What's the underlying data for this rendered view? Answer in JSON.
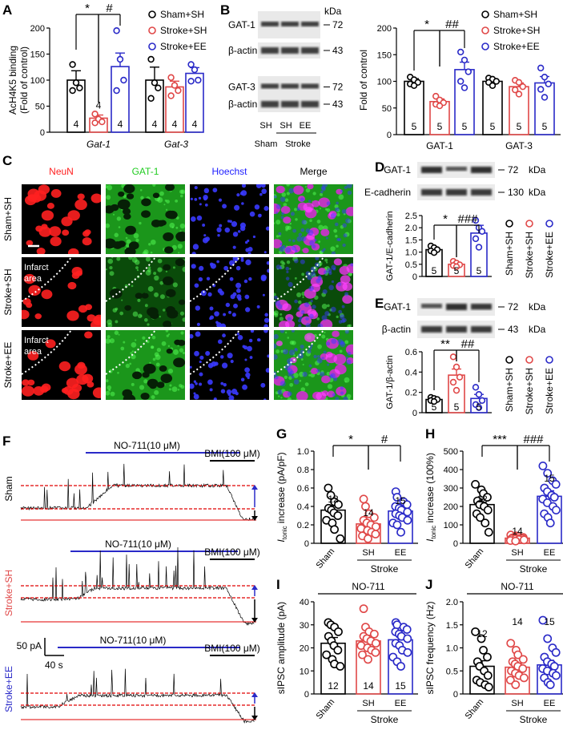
{
  "colors": {
    "sham": "#000000",
    "stroke_sh": "#e04848",
    "stroke_ee": "#2a2ac8",
    "neun": "#ff2020",
    "gat1": "#22cc22",
    "hoechst": "#2020ff",
    "trace_red": "#e00000"
  },
  "groups": {
    "sham_sh": "Sham+SH",
    "stroke_sh": "Stroke+SH",
    "stroke_ee": "Stroke+EE"
  },
  "panel_letters": {
    "a": "A",
    "b": "B",
    "c": "C",
    "d": "D",
    "e": "E",
    "f": "F",
    "g": "G",
    "h": "H",
    "i": "I",
    "j": "J"
  },
  "panelA": {
    "chart_data": {
      "type": "bar",
      "ylabel_line1": "AcH4K5 binding",
      "ylabel_line2": "(Fold of control)",
      "ylim": [
        0,
        200
      ],
      "ticks": [
        "0",
        "50",
        "100",
        "150",
        "200"
      ],
      "genes": [
        "Gat-1",
        "Gat-3"
      ],
      "series": [
        {
          "name": "Sham+SH",
          "values": [
            100,
            100
          ],
          "sem": [
            18,
            25
          ],
          "n": [
            "4",
            "4"
          ],
          "points": [
            [
              130,
              95,
              85,
              80
            ],
            [
              140,
              95,
              85,
              65
            ]
          ]
        },
        {
          "name": "Stroke+SH",
          "values": [
            27,
            87
          ],
          "sem": [
            6,
            11
          ],
          "n": [
            "4",
            "4"
          ],
          "points": [
            [
              35,
              25,
              20,
              18
            ],
            [
              105,
              90,
              80,
              70
            ]
          ]
        },
        {
          "name": "Stroke+EE",
          "values": [
            126,
            113
          ],
          "sem": [
            26,
            11
          ],
          "n": [
            "4",
            "4"
          ],
          "points": [
            [
              195,
              140,
              100,
              80
            ],
            [
              130,
              120,
              100,
              98
            ]
          ]
        }
      ],
      "sig": [
        "*",
        "#"
      ]
    }
  },
  "panelB": {
    "kda": "kDa",
    "blot_labels": [
      "GAT-1",
      "β-actin",
      "GAT-3",
      "β-actin"
    ],
    "markers": [
      "72",
      "43",
      "72",
      "43"
    ],
    "lane_labels": [
      "SH",
      "SH",
      "EE"
    ],
    "group_labels": [
      "Sham",
      "Stroke"
    ],
    "chart_data": {
      "type": "bar",
      "ylabel": "Fold of control",
      "ylim": [
        0,
        200
      ],
      "ticks": [
        "0",
        "50",
        "100",
        "150",
        "200"
      ],
      "proteins": [
        "GAT-1",
        "GAT-3"
      ],
      "series": [
        {
          "name": "Sham+SH",
          "values": [
            100,
            100
          ],
          "sem": [
            5,
            4
          ],
          "n": [
            "5",
            "5"
          ],
          "points": [
            [
              108,
              103,
              98,
              95,
              92
            ],
            [
              106,
              104,
              100,
              98,
              92
            ]
          ]
        },
        {
          "name": "Stroke+SH",
          "values": [
            62,
            90
          ],
          "sem": [
            5,
            7
          ],
          "n": [
            "5",
            "5"
          ],
          "points": [
            [
              72,
              65,
              60,
              57,
              54
            ],
            [
              102,
              98,
              90,
              84,
              76
            ]
          ]
        },
        {
          "name": "Stroke+EE",
          "values": [
            122,
            97
          ],
          "sem": [
            14,
            12
          ],
          "n": [
            "5",
            "5"
          ],
          "points": [
            [
              155,
              140,
              118,
              100,
              88
            ],
            [
              125,
              108,
              95,
              85,
              70
            ]
          ]
        }
      ],
      "sig": [
        "*",
        "##"
      ]
    }
  },
  "panelC": {
    "columns": [
      "NeuN",
      "GAT-1",
      "Hoechst",
      "Merge"
    ],
    "rows": [
      "Sham+SH",
      "Stroke+SH",
      "Stroke+EE"
    ],
    "infarct_line1": "Infarct",
    "infarct_line2": "area"
  },
  "panelD": {
    "blot_labels": [
      "GAT-1",
      "E-cadherin"
    ],
    "markers": [
      "72",
      "130"
    ],
    "kda": "kDa",
    "chart_data": {
      "type": "bar",
      "ylabel": "GAT-1/E-cadherin",
      "ylim": [
        0,
        2.5
      ],
      "ticks": [
        "0",
        "0.5",
        "1.0",
        "1.5",
        "2.0",
        "2.5"
      ],
      "categories": [
        "Sham+SH",
        "Stroke+SH",
        "Stroke+EE"
      ],
      "values": [
        1.1,
        0.5,
        1.78
      ],
      "sem": [
        0.08,
        0.07,
        0.32
      ],
      "n": [
        "5",
        "5",
        "5"
      ],
      "points": [
        [
          1.25,
          1.18,
          1.1,
          1.05,
          0.98
        ],
        [
          0.62,
          0.55,
          0.48,
          0.45,
          0.4
        ],
        [
          2.3,
          2.0,
          1.85,
          1.55,
          1.2
        ]
      ],
      "sig": [
        "*",
        "###"
      ]
    }
  },
  "panelE": {
    "blot_labels": [
      "GAT-1",
      "β-actin"
    ],
    "markers": [
      "72",
      "43"
    ],
    "kda": "kDa",
    "chart_data": {
      "type": "bar",
      "ylabel": "GAT-1/β-actin",
      "ylim": [
        0,
        0.6
      ],
      "ticks": [
        "0",
        "0.2",
        "0.4",
        "0.6"
      ],
      "categories": [
        "Sham+SH",
        "Stroke+SH",
        "Stroke+EE"
      ],
      "values": [
        0.13,
        0.37,
        0.14
      ],
      "sem": [
        0.01,
        0.06,
        0.04
      ],
      "n": [
        "5",
        "5",
        "5"
      ],
      "points": [
        [
          0.15,
          0.14,
          0.13,
          0.12,
          0.11
        ],
        [
          0.55,
          0.45,
          0.35,
          0.3,
          0.22
        ],
        [
          0.25,
          0.18,
          0.12,
          0.08,
          0.05
        ]
      ],
      "sig": [
        "**",
        "##"
      ]
    }
  },
  "panelF": {
    "drug": "NO-711(10 μM)",
    "bmi": "BMI(100 μM)",
    "row_labels": [
      "Sham",
      "Stroke+SH",
      "Stroke+EE"
    ],
    "scale_y": "50 pA",
    "scale_x": "40 s"
  },
  "panelG": {
    "chart_data": {
      "type": "bar",
      "ylabel_i": "I",
      "ylabel_sub": "tonic",
      "ylabel_rest": " increase (pA/pF)",
      "ylim": [
        0,
        1.0
      ],
      "ticks": [
        "0",
        "0.2",
        "0.4",
        "0.6",
        "0.8",
        "1.0"
      ],
      "categories": [
        "Sham",
        "SH",
        "EE"
      ],
      "values": [
        0.36,
        0.21,
        0.35
      ],
      "sem": [
        0.05,
        0.03,
        0.04
      ],
      "n": [
        "12",
        "14",
        "15"
      ],
      "points": [
        [
          0.6,
          0.52,
          0.45,
          0.42,
          0.38,
          0.36,
          0.33,
          0.3,
          0.25,
          0.22,
          0.15,
          0.05
        ],
        [
          0.48,
          0.4,
          0.32,
          0.28,
          0.25,
          0.22,
          0.2,
          0.18,
          0.16,
          0.14,
          0.12,
          0.1,
          0.08,
          0.05
        ],
        [
          0.56,
          0.5,
          0.45,
          0.42,
          0.4,
          0.38,
          0.36,
          0.34,
          0.32,
          0.3,
          0.28,
          0.25,
          0.22,
          0.2,
          0.12
        ]
      ],
      "sig": [
        "*",
        "#"
      ],
      "group": "Stroke"
    }
  },
  "panelH": {
    "chart_data": {
      "type": "bar",
      "ylabel_i": "I",
      "ylabel_sub": "tonic",
      "ylabel_rest": " increase (100%)",
      "ylim": [
        0,
        500
      ],
      "ticks": [
        "0",
        "100",
        "200",
        "300",
        "400",
        "500"
      ],
      "categories": [
        "Sham",
        "SH",
        "EE"
      ],
      "values": [
        210,
        28,
        255
      ],
      "sem": [
        30,
        4,
        30
      ],
      "n": [
        "12",
        "14",
        "15"
      ],
      "points": [
        [
          320,
          290,
          270,
          250,
          230,
          210,
          200,
          180,
          160,
          140,
          110,
          60
        ],
        [
          45,
          40,
          36,
          32,
          30,
          28,
          26,
          25,
          24,
          22,
          20,
          18,
          15,
          12
        ],
        [
          420,
          380,
          340,
          320,
          300,
          280,
          260,
          250,
          240,
          220,
          200,
          180,
          160,
          140,
          110
        ]
      ],
      "sig": [
        "***",
        "###"
      ],
      "group": "Stroke"
    }
  },
  "panelI": {
    "chart_data": {
      "type": "bar",
      "title": "NO-711",
      "ylabel": "sIPSC amplitude (pA)",
      "ylim": [
        0,
        40
      ],
      "ticks": [
        "0",
        "10",
        "20",
        "30",
        "40"
      ],
      "categories": [
        "Sham",
        "SH",
        "EE"
      ],
      "values": [
        22,
        23,
        23.5
      ],
      "sem": [
        2.5,
        1.5,
        2
      ],
      "n": [
        "12",
        "14",
        "15"
      ],
      "points": [
        [
          31,
          30,
          29,
          27,
          25,
          23,
          21,
          19,
          17,
          15,
          13,
          12
        ],
        [
          37,
          29,
          27,
          26,
          25,
          24,
          23,
          22,
          21,
          20,
          19,
          18,
          17,
          15
        ],
        [
          31,
          30,
          29,
          28,
          27,
          26,
          25,
          24,
          22,
          21,
          19,
          18,
          16,
          14,
          12
        ]
      ],
      "group": "Stroke"
    }
  },
  "panelJ": {
    "chart_data": {
      "type": "bar",
      "title": "NO-711",
      "ylabel": "sIPSC frequency (Hz)",
      "ylim": [
        0,
        2.0
      ],
      "ticks": [
        "0",
        "0.5",
        "1.0",
        "1.5",
        "2.0"
      ],
      "categories": [
        "Sham",
        "SH",
        "EE"
      ],
      "values": [
        0.6,
        0.58,
        0.63
      ],
      "sem": [
        0.12,
        0.08,
        0.1
      ],
      "n": [
        "12",
        "14",
        "15"
      ],
      "points": [
        [
          1.35,
          1.2,
          0.95,
          0.8,
          0.7,
          0.6,
          0.5,
          0.4,
          0.3,
          0.25,
          0.2,
          0.15
        ],
        [
          1.1,
          0.95,
          0.85,
          0.75,
          0.7,
          0.65,
          0.6,
          0.55,
          0.5,
          0.45,
          0.4,
          0.35,
          0.3,
          0.2
        ],
        [
          1.6,
          1.2,
          1.0,
          0.9,
          0.8,
          0.7,
          0.65,
          0.6,
          0.55,
          0.5,
          0.45,
          0.4,
          0.35,
          0.25,
          0.2
        ]
      ],
      "group": "Stroke"
    }
  }
}
